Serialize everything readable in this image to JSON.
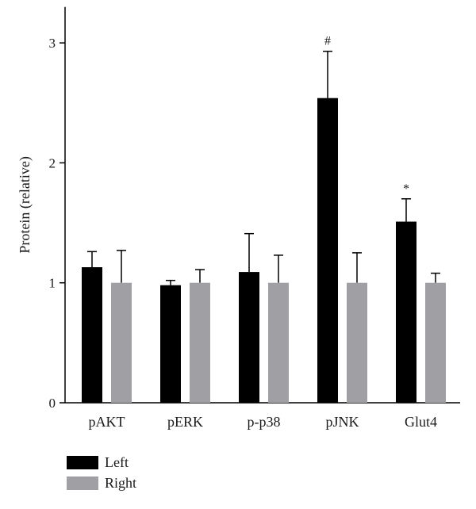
{
  "chart_data": {
    "type": "bar",
    "ylabel": "Protein (relative)",
    "xlabel": "",
    "ylim": [
      0,
      3.3
    ],
    "yticks": [
      0,
      1,
      2,
      3
    ],
    "categories": [
      "pAKT",
      "pERK",
      "p-p38",
      "pJNK",
      "Glut4"
    ],
    "series": [
      {
        "name": "Left",
        "color": "#000000",
        "values": [
          1.13,
          0.98,
          1.09,
          2.54,
          1.51
        ],
        "errors": [
          0.13,
          0.04,
          0.32,
          0.39,
          0.19
        ]
      },
      {
        "name": "Right",
        "color": "#a0a0a4",
        "values": [
          1.0,
          1.0,
          1.0,
          1.0,
          1.0
        ],
        "errors": [
          0.27,
          0.11,
          0.23,
          0.25,
          0.08
        ]
      }
    ],
    "annotations": [
      {
        "category": "pJNK",
        "series": "Left",
        "text": "#"
      },
      {
        "category": "Glut4",
        "series": "Left",
        "text": "*"
      }
    ],
    "legend": "bottom-left",
    "grid": false
  }
}
